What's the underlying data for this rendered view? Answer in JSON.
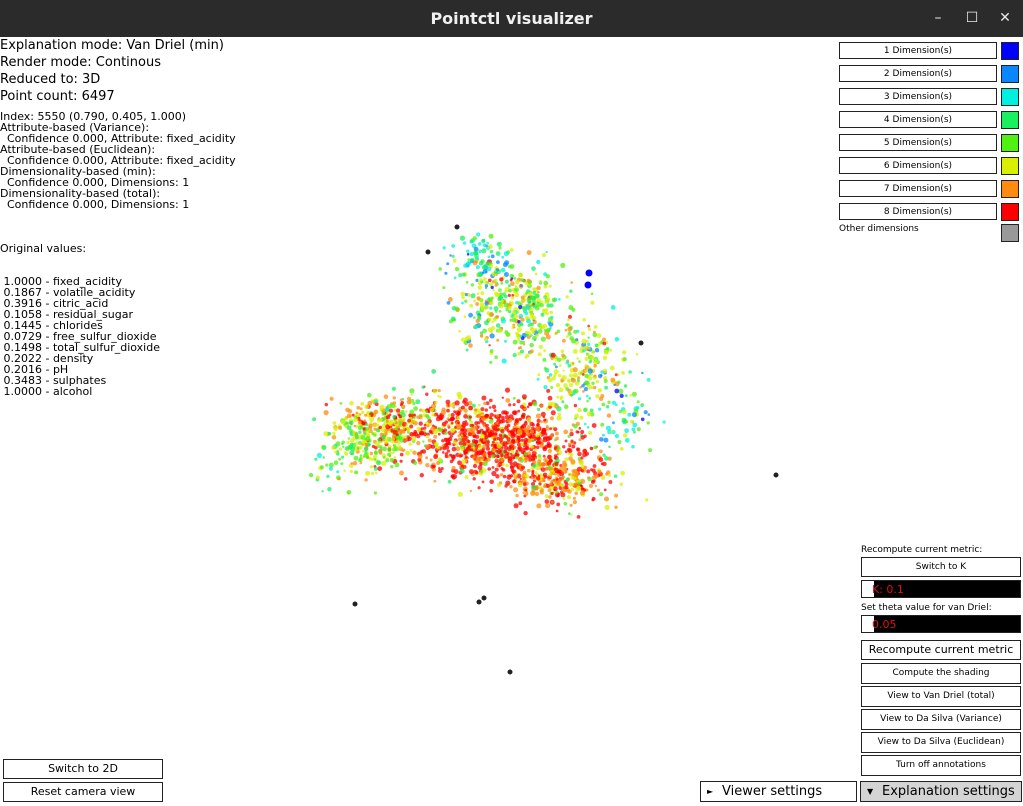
{
  "window": {
    "title": "Pointctl visualizer"
  },
  "window_controls": {
    "minimize": "–",
    "maximize": "☐",
    "close": "✕"
  },
  "status": {
    "explanation_mode": "Explanation mode: Van Driel (min)",
    "render_mode": "Render mode: Continous",
    "reduced_to": "Reduced to: 3D",
    "point_count": "Point count: 6497"
  },
  "selection": {
    "lines": [
      "Index: 5550 (0.790, 0.405, 1.000)",
      "Attribute-based (Variance):",
      "  Confidence 0.000, Attribute: fixed_acidity",
      "Attribute-based (Euclidean):",
      "  Confidence 0.000, Attribute: fixed_acidity",
      "Dimensionality-based (min):",
      "  Confidence 0.000, Dimensions: 1",
      "Dimensionality-based (total):",
      "  Confidence 0.000, Dimensions: 1"
    ],
    "original_header": "Original values:",
    "original_values": [
      " 1.0000 - fixed_acidity",
      " 0.1867 - volatile_acidity",
      " 0.3916 - citric_acid",
      " 0.1058 - residual_sugar",
      " 0.1445 - chlorides",
      " 0.0729 - free_sulfur_dioxide",
      " 0.1498 - total_sulfur_dioxide",
      " 0.2022 - density",
      " 0.2016 - pH",
      " 0.3483 - sulphates",
      " 1.0000 - alcohol"
    ]
  },
  "legend": {
    "items": [
      {
        "label": "1 Dimension(s)",
        "color": "#0000ff"
      },
      {
        "label": "2 Dimension(s)",
        "color": "#0a86ff"
      },
      {
        "label": "3 Dimension(s)",
        "color": "#00f0e0"
      },
      {
        "label": "4 Dimension(s)",
        "color": "#18f060"
      },
      {
        "label": "5 Dimension(s)",
        "color": "#50f010"
      },
      {
        "label": "6 Dimension(s)",
        "color": "#d8f000"
      },
      {
        "label": "7 Dimension(s)",
        "color": "#ff8c10"
      },
      {
        "label": "8 Dimension(s)",
        "color": "#ff0000"
      }
    ],
    "other_label": "Other dimensions",
    "other_color": "#999999"
  },
  "right_panel": {
    "recompute_label": "Recompute current metric:",
    "switch_k_button": "Switch to K",
    "k_value": "K: 0.1",
    "theta_label": "Set theta value for van Driel:",
    "theta_value": "0.05",
    "recompute_button": "Recompute current metric",
    "compute_shading_button": "Compute the shading",
    "view_van_driel_button": "View to Van Driel (total)",
    "view_da_silva_var_button": "View to Da Silva (Variance)",
    "view_da_silva_euc_button": "View to Da Silva (Euclidean)",
    "annotations_button": "Turn off annotations"
  },
  "bottom": {
    "switch_2d_button": "Switch to 2D",
    "reset_camera_button": "Reset camera view",
    "viewer_tab": "Viewer settings",
    "explanation_tab": "Explanation settings"
  }
}
